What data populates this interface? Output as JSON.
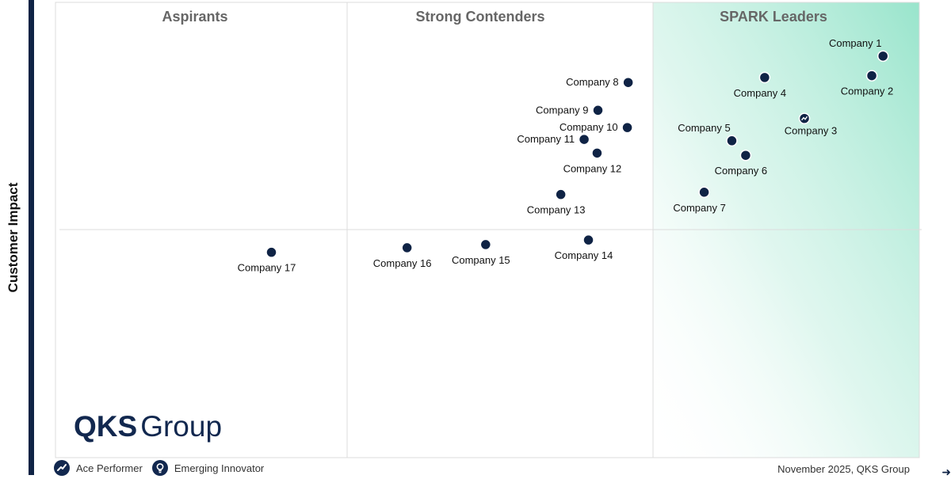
{
  "y_axis_label": "Customer Impact",
  "quadrant_titles": {
    "aspirants": "Aspirants",
    "contenders": "Strong Contenders",
    "leaders": "SPARK Leaders"
  },
  "logo": {
    "bold": "QKS",
    "regular": "Group"
  },
  "legend": [
    {
      "label": "Ace Performer",
      "icon": "trend-up-icon"
    },
    {
      "label": "Emerging Innovator",
      "icon": "lightbulb-icon"
    }
  ],
  "footer": "November 2025, QKS Group",
  "colors": {
    "marker": "#0f2345",
    "leaders_tint": "#a3e8d2",
    "grid": "#d8d8d8",
    "title": "#666666"
  },
  "chart_data": {
    "type": "scatter",
    "title": "",
    "xlabel": "",
    "ylabel": "Customer Impact",
    "grid": false,
    "points": [
      {
        "name": "Company 1",
        "x": 95.8,
        "y": 88.2,
        "label_pos": "above-left"
      },
      {
        "name": "Company 2",
        "x": 94.5,
        "y": 83.9,
        "label_pos": "below"
      },
      {
        "name": "Company 3",
        "x": 86.7,
        "y": 74.5,
        "label_pos": "below-right",
        "marker": "ace-performer"
      },
      {
        "name": "Company 4",
        "x": 82.1,
        "y": 83.5,
        "label_pos": "below"
      },
      {
        "name": "Company 5",
        "x": 78.3,
        "y": 69.6,
        "label_pos": "above-left"
      },
      {
        "name": "Company 6",
        "x": 79.9,
        "y": 66.4,
        "label_pos": "below"
      },
      {
        "name": "Company 7",
        "x": 75.1,
        "y": 58.3,
        "label_pos": "below"
      },
      {
        "name": "Company 8",
        "x": 66.3,
        "y": 82.4,
        "label_pos": "left"
      },
      {
        "name": "Company 9",
        "x": 62.8,
        "y": 76.3,
        "label_pos": "left"
      },
      {
        "name": "Company 10",
        "x": 66.2,
        "y": 72.5,
        "label_pos": "left"
      },
      {
        "name": "Company 11",
        "x": 61.2,
        "y": 69.9,
        "label_pos": "left"
      },
      {
        "name": "Company 12",
        "x": 62.7,
        "y": 66.9,
        "label_pos": "below"
      },
      {
        "name": "Company 13",
        "x": 58.5,
        "y": 57.8,
        "label_pos": "below"
      },
      {
        "name": "Company 14",
        "x": 61.7,
        "y": 47.8,
        "label_pos": "below"
      },
      {
        "name": "Company 15",
        "x": 49.8,
        "y": 46.8,
        "label_pos": "below"
      },
      {
        "name": "Company 16",
        "x": 40.7,
        "y": 46.1,
        "label_pos": "below"
      },
      {
        "name": "Company 17",
        "x": 25.0,
        "y": 45.1,
        "label_pos": "below"
      }
    ]
  }
}
